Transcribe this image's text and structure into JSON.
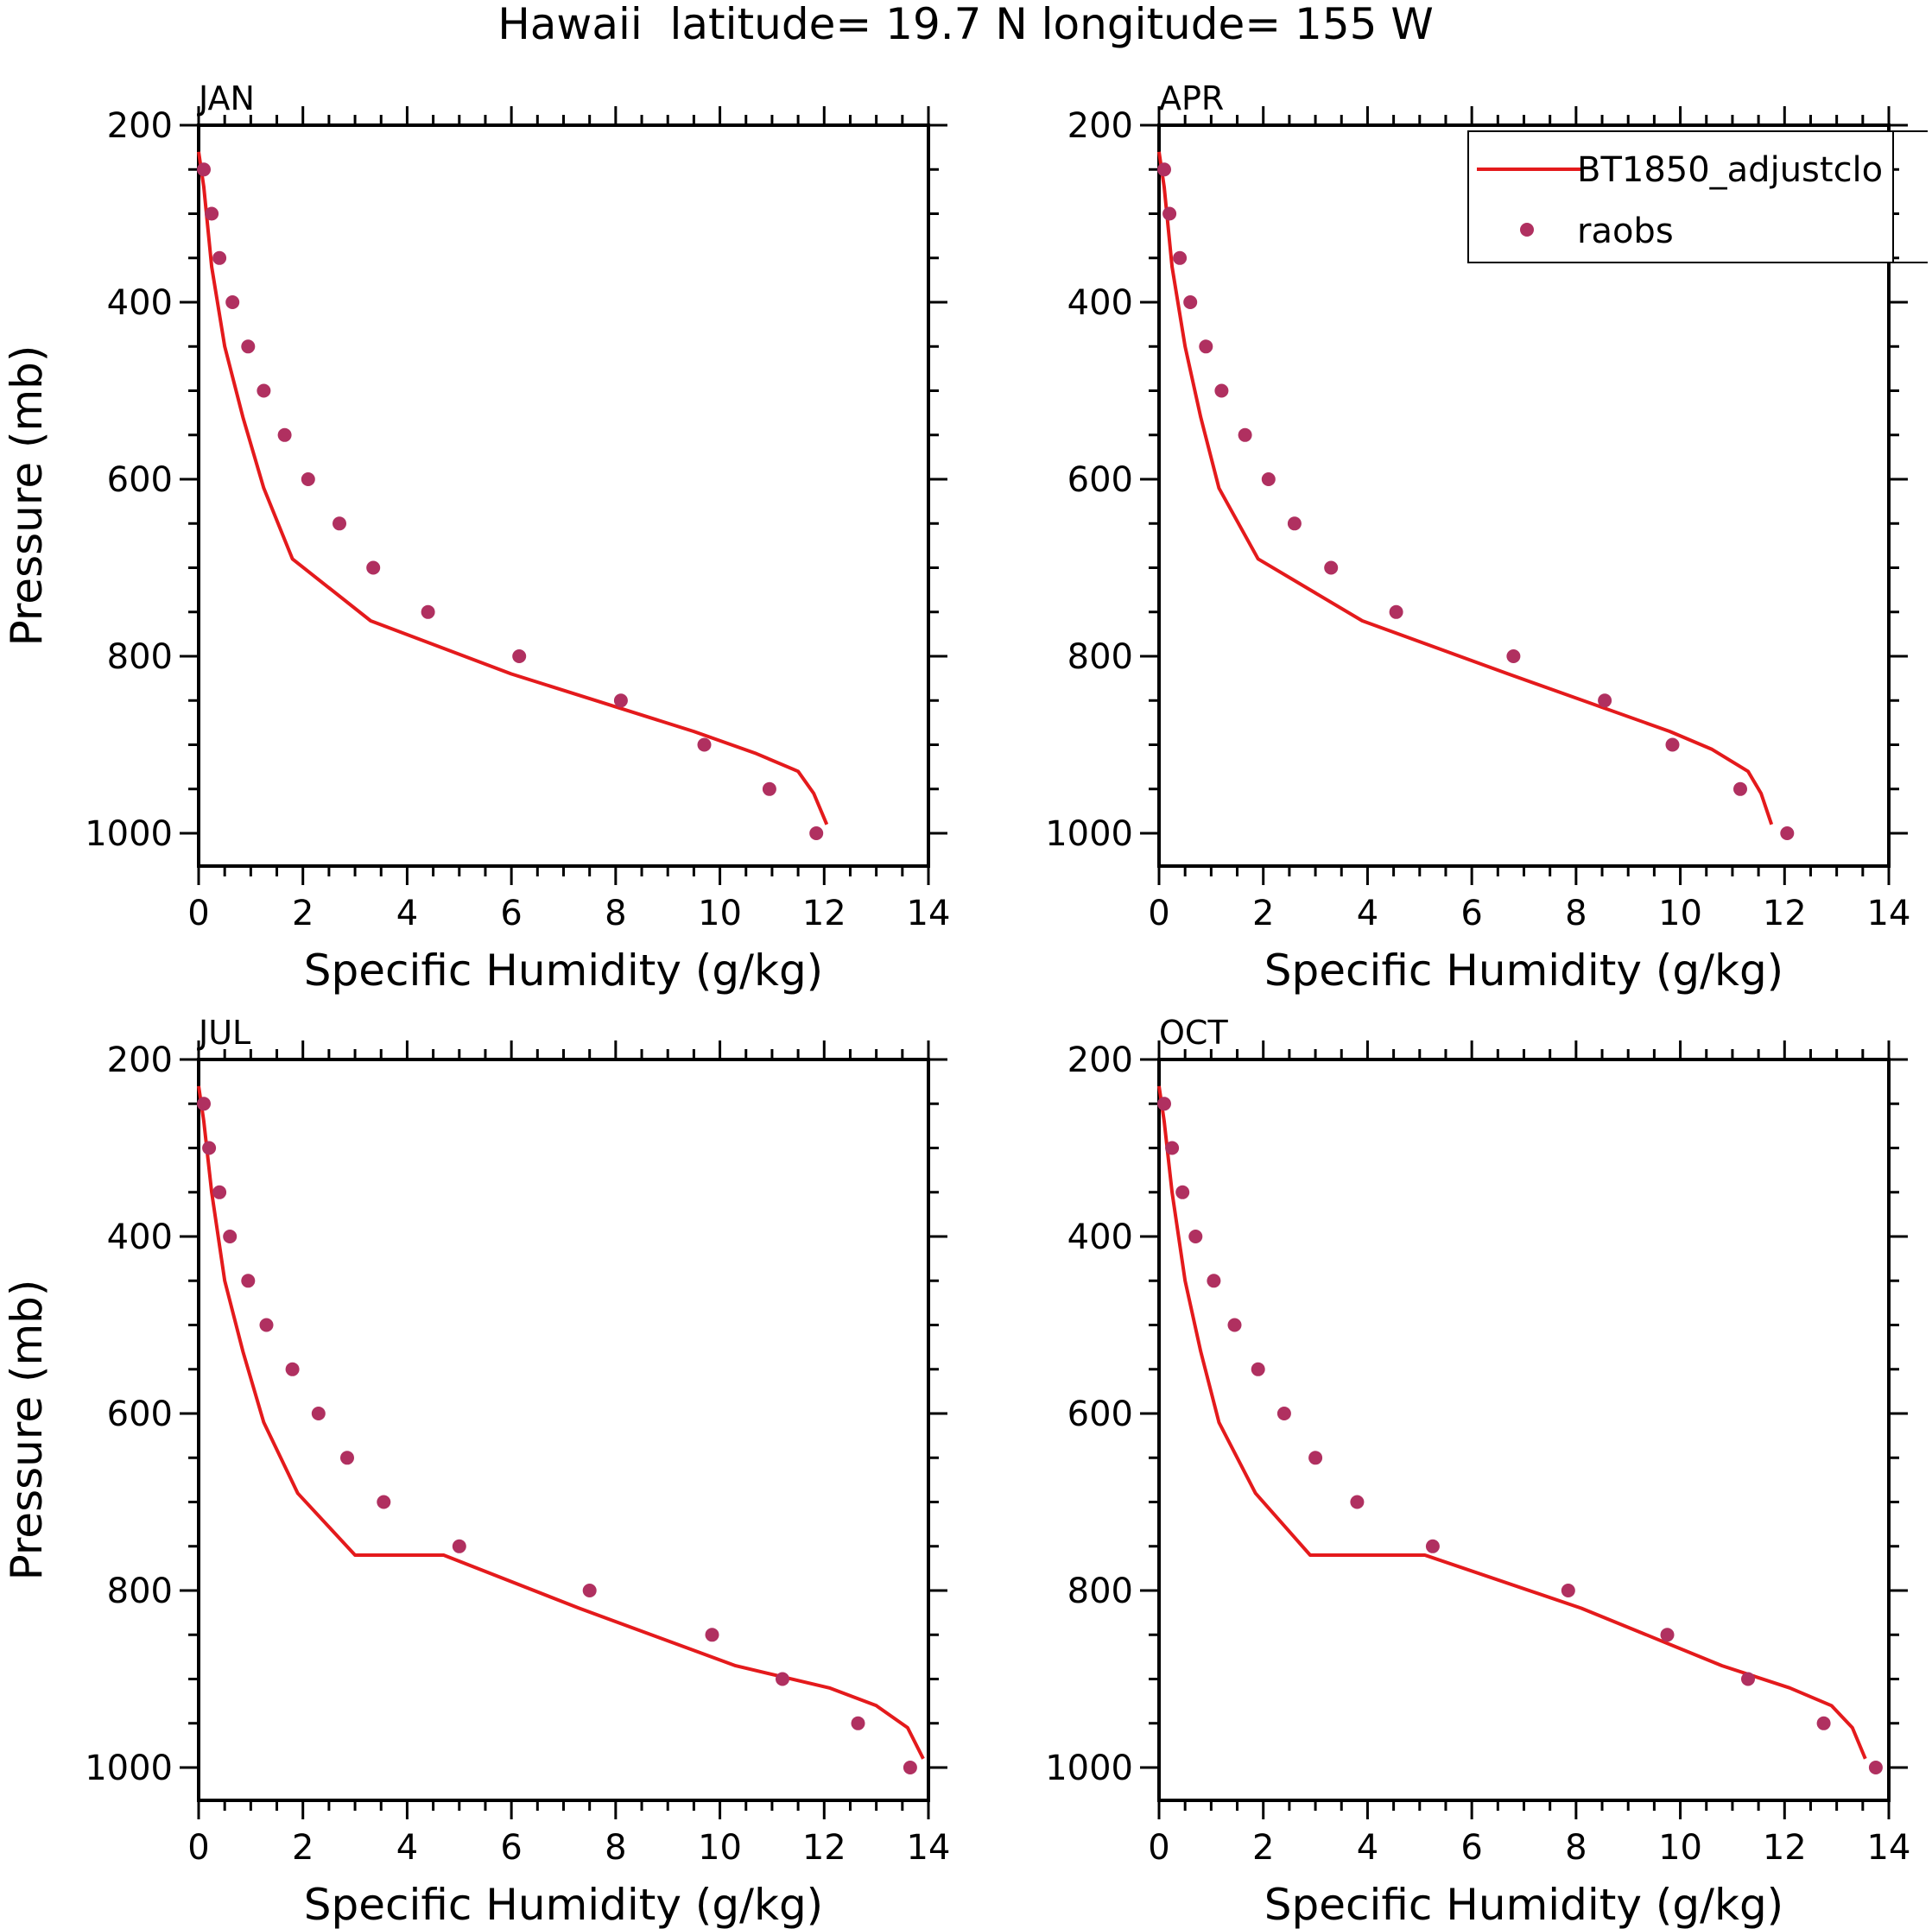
{
  "figure_title": "Hawaii  latitude= 19.7 N longitude= 155 W",
  "legend": {
    "model_label": "BT1850_adjustclo",
    "obs_label": "raobs"
  },
  "colors": {
    "model": "#e41a1c",
    "obs": "#b03060",
    "axes": "#000000"
  },
  "chart_data": [
    {
      "type": "line",
      "panel": "JAN",
      "xlabel": "Specific Humidity (g/kg)",
      "ylabel": "Pressure (mb)",
      "xlim": [
        0,
        14
      ],
      "ylim": [
        200,
        1000
      ],
      "x_ticks": [
        "0",
        "2",
        "4",
        "6",
        "8",
        "10",
        "12",
        "14"
      ],
      "y_ticks": [
        "200",
        "400",
        "600",
        "800",
        "1000"
      ],
      "series": [
        {
          "name": "BT1850_adjustclo",
          "style": "line",
          "x": [
            0.0,
            0.1,
            0.25,
            0.5,
            0.85,
            1.25,
            1.8,
            3.3,
            6.0,
            9.5,
            10.7,
            11.5,
            11.8,
            12.05
          ],
          "y": [
            230,
            270,
            360,
            450,
            530,
            610,
            690,
            760,
            820,
            885,
            910,
            930,
            955,
            990
          ]
        },
        {
          "name": "raobs",
          "style": "points",
          "x": [
            0.1,
            0.25,
            0.4,
            0.65,
            0.95,
            1.25,
            1.65,
            2.1,
            2.7,
            3.35,
            4.4,
            6.15,
            8.1,
            9.7,
            10.95,
            11.85
          ],
          "y": [
            250,
            300,
            350,
            400,
            450,
            500,
            550,
            600,
            650,
            700,
            750,
            800,
            850,
            900,
            950,
            1000
          ]
        }
      ]
    },
    {
      "type": "line",
      "panel": "APR",
      "xlabel": "Specific Humidity (g/kg)",
      "ylabel": "",
      "xlim": [
        0,
        14
      ],
      "ylim": [
        200,
        1000
      ],
      "x_ticks": [
        "0",
        "2",
        "4",
        "6",
        "8",
        "10",
        "12",
        "14"
      ],
      "y_ticks": [
        "200",
        "400",
        "600",
        "800",
        "1000"
      ],
      "series": [
        {
          "name": "BT1850_adjustclo",
          "style": "line",
          "x": [
            0.0,
            0.1,
            0.25,
            0.5,
            0.8,
            1.15,
            1.9,
            3.9,
            6.7,
            9.8,
            10.6,
            11.3,
            11.55,
            11.75
          ],
          "y": [
            230,
            270,
            360,
            450,
            530,
            610,
            690,
            760,
            820,
            885,
            905,
            930,
            955,
            990
          ]
        },
        {
          "name": "raobs",
          "style": "points",
          "x": [
            0.1,
            0.2,
            0.4,
            0.6,
            0.9,
            1.2,
            1.65,
            2.1,
            2.6,
            3.3,
            4.55,
            6.8,
            8.55,
            9.85,
            11.15,
            12.05
          ],
          "y": [
            250,
            300,
            350,
            400,
            450,
            500,
            550,
            600,
            650,
            700,
            750,
            800,
            850,
            900,
            950,
            1000
          ]
        }
      ]
    },
    {
      "type": "line",
      "panel": "JUL",
      "xlabel": "Specific Humidity (g/kg)",
      "ylabel": "Pressure (mb)",
      "xlim": [
        0,
        14
      ],
      "ylim": [
        200,
        1000
      ],
      "x_ticks": [
        "0",
        "2",
        "4",
        "6",
        "8",
        "10",
        "12",
        "14"
      ],
      "y_ticks": [
        "200",
        "400",
        "600",
        "800",
        "1000"
      ],
      "series": [
        {
          "name": "BT1850_adjustclo",
          "style": "line",
          "x": [
            0.0,
            0.1,
            0.25,
            0.5,
            0.85,
            1.25,
            1.9,
            3.0,
            4.7,
            7.3,
            10.3,
            12.1,
            13.0,
            13.6,
            13.9
          ],
          "y": [
            230,
            270,
            350,
            450,
            530,
            610,
            690,
            760,
            760,
            820,
            885,
            910,
            930,
            955,
            990
          ]
        },
        {
          "name": "raobs",
          "style": "points",
          "x": [
            0.1,
            0.2,
            0.4,
            0.6,
            0.95,
            1.3,
            1.8,
            2.3,
            2.85,
            3.55,
            5.0,
            7.5,
            9.85,
            11.2,
            12.65,
            13.65
          ],
          "y": [
            250,
            300,
            350,
            400,
            450,
            500,
            550,
            600,
            650,
            700,
            750,
            800,
            850,
            900,
            950,
            1000
          ]
        }
      ]
    },
    {
      "type": "line",
      "panel": "OCT",
      "xlabel": "Specific Humidity (g/kg)",
      "ylabel": "",
      "xlim": [
        0,
        14
      ],
      "ylim": [
        200,
        1000
      ],
      "x_ticks": [
        "0",
        "2",
        "4",
        "6",
        "8",
        "10",
        "12",
        "14"
      ],
      "y_ticks": [
        "200",
        "400",
        "600",
        "800",
        "1000"
      ],
      "series": [
        {
          "name": "BT1850_adjustclo",
          "style": "line",
          "x": [
            0.0,
            0.1,
            0.25,
            0.5,
            0.8,
            1.15,
            1.85,
            2.9,
            5.1,
            8.1,
            10.8,
            12.1,
            12.9,
            13.3,
            13.55
          ],
          "y": [
            230,
            270,
            350,
            450,
            530,
            610,
            690,
            760,
            760,
            820,
            885,
            910,
            930,
            955,
            990
          ]
        },
        {
          "name": "raobs",
          "style": "points",
          "x": [
            0.1,
            0.25,
            0.45,
            0.7,
            1.05,
            1.45,
            1.9,
            2.4,
            3.0,
            3.8,
            5.25,
            7.85,
            9.75,
            11.3,
            12.75,
            13.75
          ],
          "y": [
            250,
            300,
            350,
            400,
            450,
            500,
            550,
            600,
            650,
            700,
            750,
            800,
            850,
            900,
            950,
            1000
          ]
        }
      ]
    }
  ]
}
